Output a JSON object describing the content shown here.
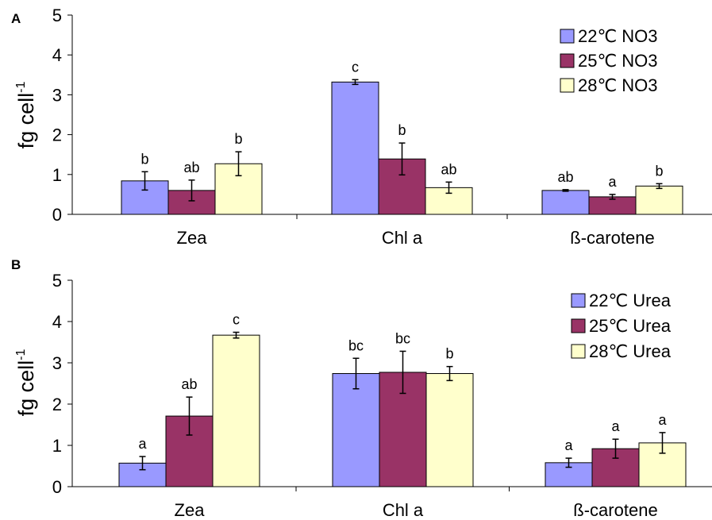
{
  "chart_data": [
    {
      "type": "bar",
      "panel_label": "A",
      "ylabel": "fg cell",
      "ylabel_superscript": "-1",
      "ylim": [
        0,
        5
      ],
      "yticks": [
        "0",
        "1",
        "2",
        "3",
        "4",
        "5"
      ],
      "categories": [
        "Zea",
        "Chl a",
        "ß-carotene"
      ],
      "legend_position": "top-right",
      "series": [
        {
          "name": "22℃ NO3",
          "color": "#9999ff",
          "values": [
            0.84,
            3.32,
            0.6
          ],
          "errors": [
            0.23,
            0.06,
            0.02
          ],
          "letters": [
            "b",
            "c",
            "ab"
          ]
        },
        {
          "name": "25℃ NO3",
          "color": "#993366",
          "values": [
            0.6,
            1.39,
            0.44
          ],
          "errors": [
            0.26,
            0.4,
            0.06
          ],
          "letters": [
            "ab",
            "b",
            "a"
          ]
        },
        {
          "name": "28℃ NO3",
          "color": "#ffffcc",
          "values": [
            1.27,
            0.67,
            0.71
          ],
          "errors": [
            0.3,
            0.14,
            0.06
          ],
          "letters": [
            "b",
            "ab",
            "b"
          ]
        }
      ]
    },
    {
      "type": "bar",
      "panel_label": "B",
      "ylabel": "fg cell",
      "ylabel_superscript": "-1",
      "ylim": [
        0,
        5
      ],
      "yticks": [
        "0",
        "1",
        "2",
        "3",
        "4",
        "5"
      ],
      "categories": [
        "Zea",
        "Chl a",
        "ß-carotene"
      ],
      "legend_position": "top-right",
      "series": [
        {
          "name": "22℃ Urea",
          "color": "#9999ff",
          "values": [
            0.57,
            2.74,
            0.58
          ],
          "errors": [
            0.16,
            0.37,
            0.11
          ],
          "letters": [
            "a",
            "bc",
            "a"
          ]
        },
        {
          "name": "25℃ Urea",
          "color": "#993366",
          "values": [
            1.71,
            2.77,
            0.92
          ],
          "errors": [
            0.46,
            0.51,
            0.23
          ],
          "letters": [
            "ab",
            "bc",
            "a"
          ]
        },
        {
          "name": "28℃ Urea",
          "color": "#ffffcc",
          "values": [
            3.67,
            2.74,
            1.06
          ],
          "errors": [
            0.07,
            0.17,
            0.25
          ],
          "letters": [
            "c",
            "b",
            "a"
          ]
        }
      ]
    }
  ]
}
